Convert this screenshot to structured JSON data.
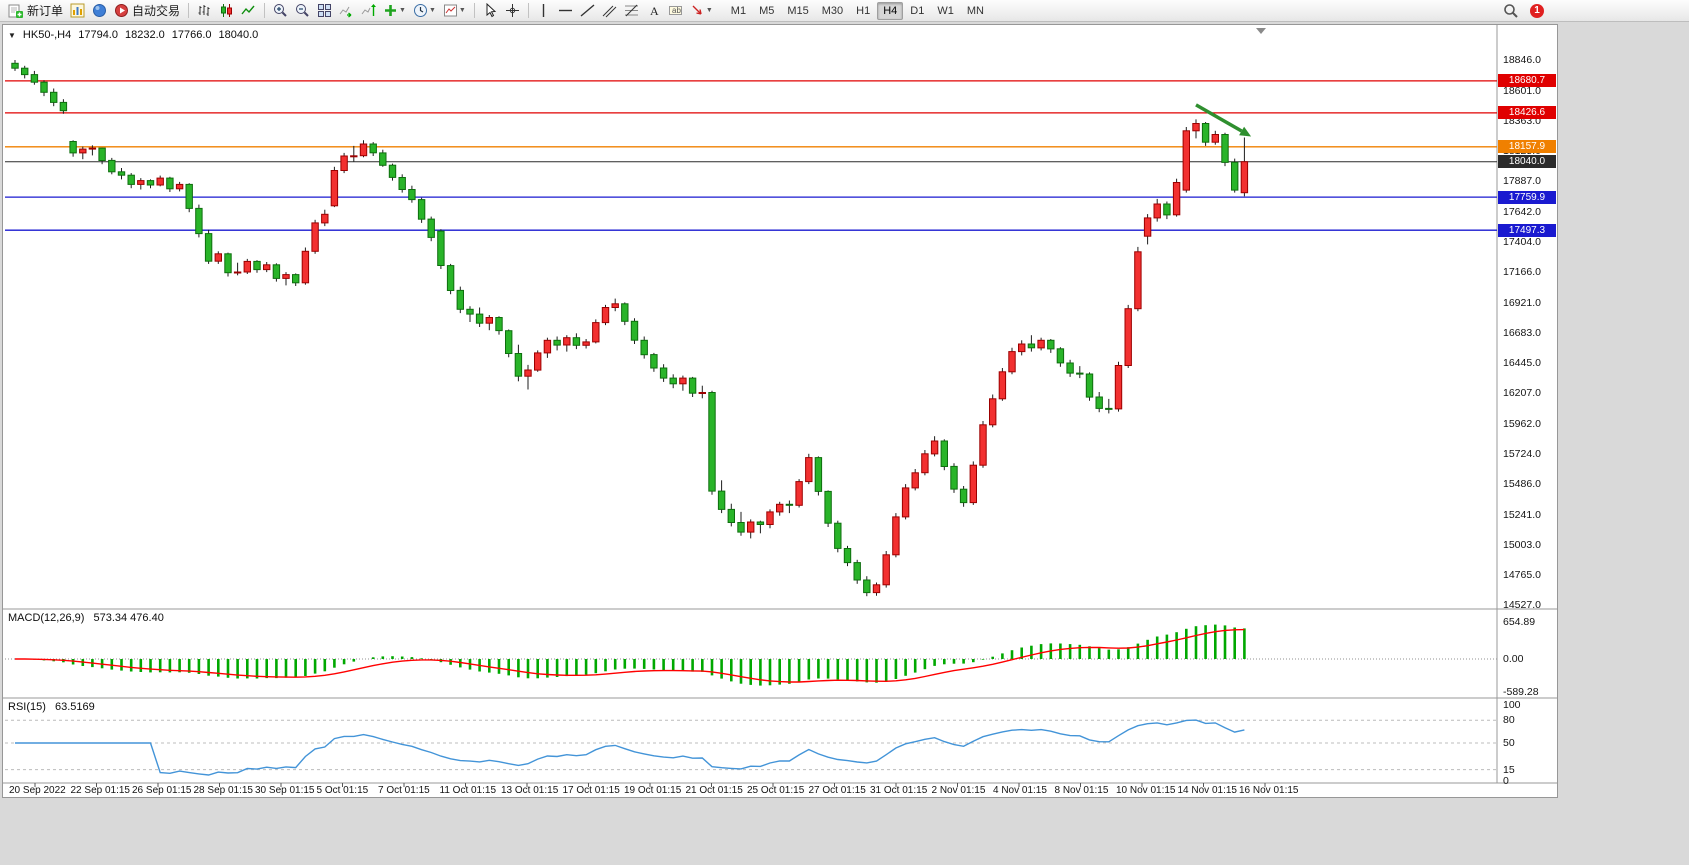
{
  "toolbar": {
    "new_order": "新订单",
    "autotrading": "自动交易",
    "timeframes": [
      "M1",
      "M5",
      "M15",
      "M30",
      "H1",
      "H4",
      "D1",
      "W1",
      "MN"
    ],
    "active_timeframe": "H4",
    "notification_count": "1"
  },
  "chart": {
    "symbol_header": "HK50-,H4",
    "ohlc": {
      "open": "17794.0",
      "high": "18232.0",
      "low": "17766.0",
      "close": "18040.0"
    }
  },
  "macd": {
    "title": "MACD(12,26,9)",
    "values": "573.34 476.40",
    "axis_labels": [
      "654.89",
      "0.00",
      "-589.28"
    ]
  },
  "rsi": {
    "title": "RSI(15)",
    "value": "63.5169",
    "axis_labels": [
      "100",
      "80",
      "50",
      "15",
      "0"
    ],
    "levels": [
      80,
      50,
      15
    ]
  },
  "price_axis": {
    "labels": [
      "18846.0",
      "18601.0",
      "18363.0",
      "18125.0",
      "17887.0",
      "17642.0",
      "17404.0",
      "17166.0",
      "16921.0",
      "16683.0",
      "16445.0",
      "16207.0",
      "15962.0",
      "15724.0",
      "15486.0",
      "15241.0",
      "15003.0",
      "14765.0",
      "14527.0"
    ]
  },
  "time_axis": {
    "labels": [
      "20 Sep 2022",
      "22 Sep 01:15",
      "26 Sep 01:15",
      "28 Sep 01:15",
      "30 Sep 01:15",
      "5 Oct 01:15",
      "7 Oct 01:15",
      "11 Oct 01:15",
      "13 Oct 01:15",
      "17 Oct 01:15",
      "19 Oct 01:15",
      "21 Oct 01:15",
      "25 Oct 01:15",
      "27 Oct 01:15",
      "31 Oct 01:15",
      "2 Nov 01:15",
      "4 Nov 01:15",
      "8 Nov 01:15",
      "10 Nov 01:15",
      "14 Nov 01:15",
      "16 Nov 01:15"
    ]
  },
  "colors": {
    "bull_fill": "#f23030",
    "bull_stroke": "#9c0000",
    "bear_fill": "#29b429",
    "bear_stroke": "#0e6e0e",
    "wick": "#1e1e1e",
    "macd_hist": "#00a800",
    "macd_signal": "#ff0000",
    "rsi_line": "#4394d8",
    "level_red": "#e00000",
    "level_orange": "#f08000",
    "level_blue": "#1a1ad0",
    "current_price": "#2b2b2b"
  },
  "chart_data": {
    "type": "candlestick",
    "symbol": "HK50-",
    "timeframe": "H4",
    "color_convention": "red = bullish, green = bearish",
    "price_range": {
      "min": 14527.0,
      "max": 18846.0
    },
    "levels": [
      {
        "value": 18680.7,
        "label": "18680.7",
        "color": "#e00000",
        "name": "resistance-line-18680"
      },
      {
        "value": 18426.6,
        "label": "18426.6",
        "color": "#e00000",
        "name": "resistance-line-18426"
      },
      {
        "value": 18157.9,
        "label": "18157.9",
        "color": "#f08000",
        "name": "pivot-line-18157"
      },
      {
        "value": 18040.0,
        "label": "18040.0",
        "color": "#2b2b2b",
        "name": "current-price-line"
      },
      {
        "value": 17759.9,
        "label": "17759.9",
        "color": "#1a1ad0",
        "name": "support-line-17759"
      },
      {
        "value": 17497.3,
        "label": "17497.3",
        "color": "#1a1ad0",
        "name": "support-line-17497"
      }
    ],
    "candles": [
      [
        18820,
        18846,
        18760,
        18781
      ],
      [
        18781,
        18800,
        18700,
        18730
      ],
      [
        18730,
        18760,
        18650,
        18670
      ],
      [
        18670,
        18685,
        18560,
        18590
      ],
      [
        18590,
        18620,
        18480,
        18510
      ],
      [
        18510,
        18535,
        18420,
        18444
      ],
      [
        18200,
        18210,
        18080,
        18110
      ],
      [
        18110,
        18160,
        18060,
        18140
      ],
      [
        18140,
        18170,
        18090,
        18148
      ],
      [
        18148,
        18150,
        18020,
        18050
      ],
      [
        18050,
        18070,
        17940,
        17960
      ],
      [
        17960,
        17990,
        17900,
        17933
      ],
      [
        17933,
        17950,
        17830,
        17860
      ],
      [
        17860,
        17910,
        17820,
        17890
      ],
      [
        17890,
        17900,
        17830,
        17855
      ],
      [
        17855,
        17930,
        17845,
        17910
      ],
      [
        17910,
        17920,
        17800,
        17825
      ],
      [
        17825,
        17880,
        17805,
        17860
      ],
      [
        17860,
        17870,
        17640,
        17670
      ],
      [
        17670,
        17700,
        17440,
        17470
      ],
      [
        17470,
        17500,
        17230,
        17251
      ],
      [
        17251,
        17330,
        17230,
        17310
      ],
      [
        17310,
        17320,
        17130,
        17160
      ],
      [
        17160,
        17240,
        17140,
        17166
      ],
      [
        17166,
        17270,
        17150,
        17250
      ],
      [
        17250,
        17260,
        17160,
        17185
      ],
      [
        17185,
        17245,
        17165,
        17223
      ],
      [
        17223,
        17235,
        17090,
        17115
      ],
      [
        17115,
        17165,
        17060,
        17145
      ],
      [
        17145,
        17155,
        17055,
        17080
      ],
      [
        17080,
        17360,
        17065,
        17330
      ],
      [
        17330,
        17580,
        17310,
        17555
      ],
      [
        17555,
        17660,
        17530,
        17623
      ],
      [
        17690,
        18000,
        17680,
        17970
      ],
      [
        17970,
        18110,
        17950,
        18085
      ],
      [
        18085,
        18165,
        18040,
        18087
      ],
      [
        18087,
        18210,
        18075,
        18180
      ],
      [
        18180,
        18195,
        18085,
        18110
      ],
      [
        18110,
        18135,
        18000,
        18012
      ],
      [
        18012,
        18025,
        17890,
        17915
      ],
      [
        17915,
        17940,
        17795,
        17820
      ],
      [
        17820,
        17850,
        17715,
        17740
      ],
      [
        17740,
        17755,
        17555,
        17585
      ],
      [
        17585,
        17605,
        17410,
        17440
      ],
      [
        17490,
        17505,
        17190,
        17217
      ],
      [
        17217,
        17230,
        16990,
        17020
      ],
      [
        17020,
        17050,
        16840,
        16870
      ],
      [
        16870,
        16895,
        16770,
        16832
      ],
      [
        16832,
        16885,
        16730,
        16760
      ],
      [
        16760,
        16825,
        16705,
        16805
      ],
      [
        16805,
        16815,
        16670,
        16701
      ],
      [
        16701,
        16710,
        16490,
        16520
      ],
      [
        16520,
        16590,
        16300,
        16340
      ],
      [
        16340,
        16430,
        16235,
        16389
      ],
      [
        16389,
        16545,
        16375,
        16525
      ],
      [
        16525,
        16645,
        16485,
        16625
      ],
      [
        16625,
        16655,
        16545,
        16587
      ],
      [
        16587,
        16665,
        16535,
        16645
      ],
      [
        16645,
        16680,
        16555,
        16585
      ],
      [
        16585,
        16635,
        16560,
        16612
      ],
      [
        16612,
        16790,
        16600,
        16765
      ],
      [
        16765,
        16905,
        16745,
        16885
      ],
      [
        16885,
        16955,
        16855,
        16914
      ],
      [
        16914,
        16925,
        16745,
        16775
      ],
      [
        16775,
        16800,
        16595,
        16625
      ],
      [
        16625,
        16655,
        16480,
        16511
      ],
      [
        16511,
        16525,
        16375,
        16405
      ],
      [
        16405,
        16435,
        16295,
        16325
      ],
      [
        16325,
        16355,
        16245,
        16280
      ],
      [
        16280,
        16345,
        16225,
        16325
      ],
      [
        16325,
        16335,
        16175,
        16205
      ],
      [
        16205,
        16265,
        16165,
        16211
      ],
      [
        16211,
        16225,
        15400,
        15430
      ],
      [
        15430,
        15515,
        15255,
        15285
      ],
      [
        15285,
        15330,
        15150,
        15181
      ],
      [
        15181,
        15265,
        15075,
        15105
      ],
      [
        15105,
        15205,
        15055,
        15185
      ],
      [
        15185,
        15195,
        15095,
        15165
      ],
      [
        15165,
        15285,
        15135,
        15265
      ],
      [
        15265,
        15345,
        15235,
        15325
      ],
      [
        15325,
        15355,
        15255,
        15317
      ],
      [
        15317,
        15525,
        15300,
        15505
      ],
      [
        15505,
        15725,
        15485,
        15695
      ],
      [
        15695,
        15705,
        15395,
        15427
      ],
      [
        15427,
        15435,
        15145,
        15175
      ],
      [
        15175,
        15195,
        14945,
        14975
      ],
      [
        14975,
        14995,
        14835,
        14863
      ],
      [
        14863,
        14885,
        14695,
        14725
      ],
      [
        14725,
        14755,
        14597,
        14625
      ],
      [
        14625,
        14705,
        14600,
        14687
      ],
      [
        14687,
        14955,
        14665,
        14925
      ],
      [
        14925,
        15255,
        14905,
        15225
      ],
      [
        15225,
        15485,
        15205,
        15455
      ],
      [
        15455,
        15605,
        15435,
        15575
      ],
      [
        15575,
        15755,
        15555,
        15725
      ],
      [
        15725,
        15865,
        15705,
        15827
      ],
      [
        15827,
        15840,
        15595,
        15625
      ],
      [
        15625,
        15650,
        15415,
        15445
      ],
      [
        15445,
        15470,
        15305,
        15339
      ],
      [
        15339,
        15665,
        15320,
        15635
      ],
      [
        15635,
        15985,
        15615,
        15955
      ],
      [
        15955,
        16195,
        15935,
        16161
      ],
      [
        16161,
        16405,
        16145,
        16375
      ],
      [
        16375,
        16565,
        16355,
        16535
      ],
      [
        16535,
        16625,
        16505,
        16595
      ],
      [
        16595,
        16665,
        16535,
        16565
      ],
      [
        16565,
        16645,
        16545,
        16625
      ],
      [
        16625,
        16635,
        16525,
        16557
      ],
      [
        16557,
        16570,
        16415,
        16445
      ],
      [
        16445,
        16470,
        16335,
        16365
      ],
      [
        16365,
        16420,
        16325,
        16358
      ],
      [
        16358,
        16370,
        16145,
        16175
      ],
      [
        16175,
        16215,
        16055,
        16085
      ],
      [
        16085,
        16160,
        16045,
        16081
      ],
      [
        16081,
        16455,
        16060,
        16425
      ],
      [
        16425,
        16905,
        16405,
        16875
      ],
      [
        16875,
        17365,
        16855,
        17326
      ],
      [
        17450,
        17625,
        17385,
        17595
      ],
      [
        17595,
        17745,
        17565,
        17705
      ],
      [
        17705,
        17725,
        17585,
        17619
      ],
      [
        17619,
        17905,
        17605,
        17875
      ],
      [
        17815,
        18315,
        17795,
        18285
      ],
      [
        18285,
        18375,
        18225,
        18343
      ],
      [
        18343,
        18355,
        18165,
        18195
      ],
      [
        18195,
        18285,
        18175,
        18256
      ],
      [
        18256,
        18270,
        18005,
        18035
      ],
      [
        18035,
        18065,
        17795,
        17815
      ],
      [
        17794,
        18232,
        17766,
        18040
      ]
    ],
    "indicators": {
      "macd": {
        "params": [
          12,
          26,
          9
        ],
        "current_macd": 573.34,
        "current_signal": 476.4,
        "axis_max": 654.89,
        "axis_min": -589.28
      },
      "rsi": {
        "period": 15,
        "current": 63.5169
      }
    },
    "annotation_arrow": {
      "from_bar": 122,
      "from_price": 18490,
      "to_bar": 127.7,
      "to_price": 18240,
      "color": "#2f8f2f"
    }
  }
}
